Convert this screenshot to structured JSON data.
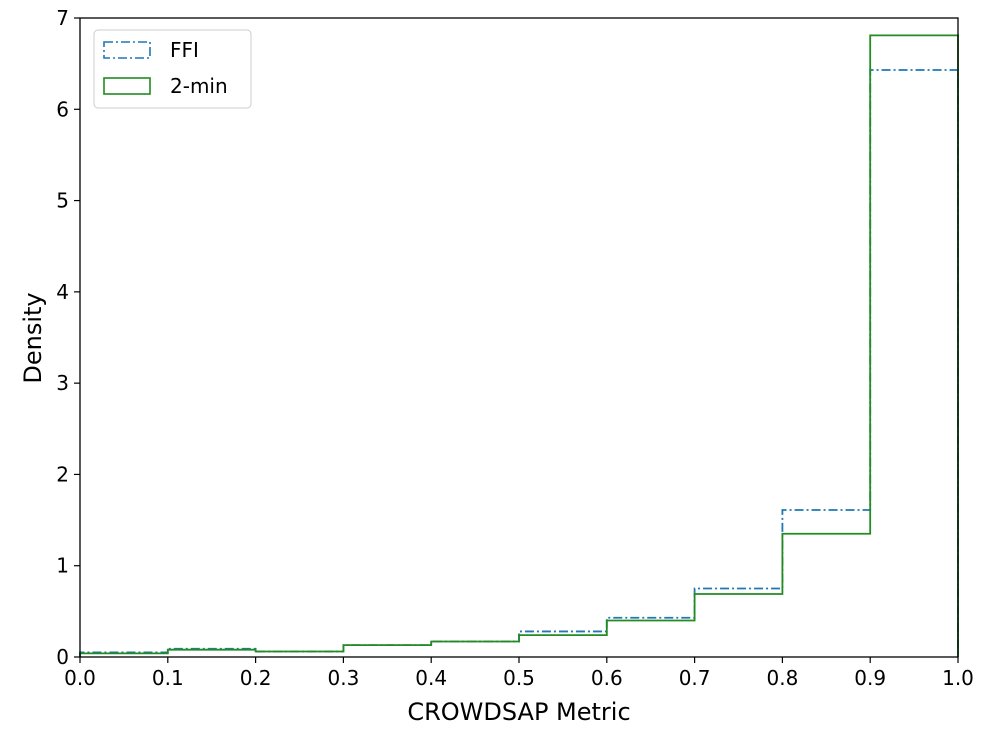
{
  "chart_data": {
    "type": "histogram-step",
    "title": "",
    "xlabel": "CROWDSAP Metric",
    "ylabel": "Density",
    "xlim": [
      0.0,
      1.0
    ],
    "ylim": [
      0,
      7
    ],
    "xticks": [
      "0.0",
      "0.1",
      "0.2",
      "0.3",
      "0.4",
      "0.5",
      "0.6",
      "0.7",
      "0.8",
      "0.9",
      "1.0"
    ],
    "yticks": [
      "0",
      "1",
      "2",
      "3",
      "4",
      "5",
      "6",
      "7"
    ],
    "bin_edges": [
      0.0,
      0.1,
      0.2,
      0.3,
      0.4,
      0.5,
      0.6,
      0.7,
      0.8,
      0.9,
      1.0
    ],
    "legend_position": "top-left",
    "series": [
      {
        "name": "FFI",
        "style": "dash-dot",
        "color": "#1f77b4",
        "values": [
          0.05,
          0.09,
          0.06,
          0.13,
          0.17,
          0.28,
          0.43,
          0.75,
          1.61,
          6.43
        ]
      },
      {
        "name": "2-min",
        "style": "solid",
        "color": "#228b22",
        "values": [
          0.04,
          0.08,
          0.06,
          0.13,
          0.17,
          0.24,
          0.4,
          0.69,
          1.35,
          6.81
        ]
      }
    ]
  }
}
